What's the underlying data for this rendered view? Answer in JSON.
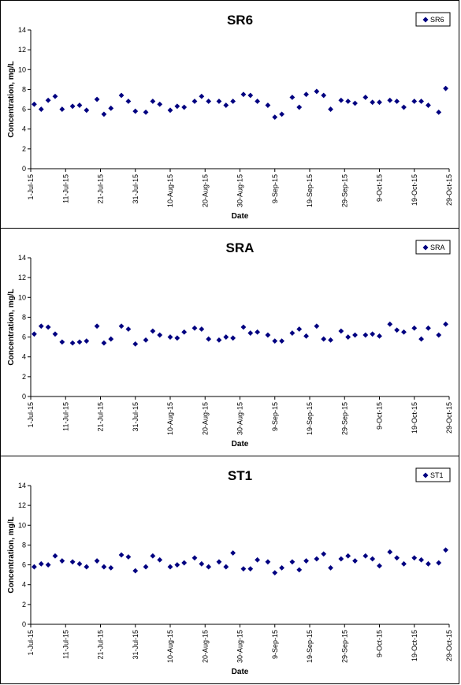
{
  "chart_data": [
    {
      "type": "scatter",
      "title": "SR6",
      "xlabel": "Date",
      "ylabel": "Concentration, mg/L",
      "ylim": [
        0,
        14
      ],
      "yticks": [
        "0",
        "2",
        "4",
        "6",
        "8",
        "10",
        "12",
        "14"
      ],
      "xlim": [
        "2015-07-01",
        "2015-10-29"
      ],
      "xticks": [
        "1-Jul-15",
        "11-Jul-15",
        "21-Jul-15",
        "31-Jul-15",
        "10-Aug-15",
        "20-Aug-15",
        "30-Aug-15",
        "9-Sep-15",
        "19-Sep-15",
        "29-Sep-15",
        "9-Oct-15",
        "19-Oct-15",
        "29-Oct-15"
      ],
      "legend": "top-right",
      "color": "#000080",
      "series": [
        {
          "name": "SR6",
          "x": [
            "2015-07-02",
            "2015-07-04",
            "2015-07-06",
            "2015-07-08",
            "2015-07-10",
            "2015-07-13",
            "2015-07-15",
            "2015-07-17",
            "2015-07-20",
            "2015-07-22",
            "2015-07-24",
            "2015-07-27",
            "2015-07-29",
            "2015-07-31",
            "2015-08-03",
            "2015-08-05",
            "2015-08-07",
            "2015-08-10",
            "2015-08-12",
            "2015-08-14",
            "2015-08-17",
            "2015-08-19",
            "2015-08-21",
            "2015-08-24",
            "2015-08-26",
            "2015-08-28",
            "2015-08-31",
            "2015-09-02",
            "2015-09-04",
            "2015-09-07",
            "2015-09-09",
            "2015-09-11",
            "2015-09-14",
            "2015-09-16",
            "2015-09-18",
            "2015-09-21",
            "2015-09-23",
            "2015-09-25",
            "2015-09-28",
            "2015-09-30",
            "2015-10-02",
            "2015-10-05",
            "2015-10-07",
            "2015-10-09",
            "2015-10-12",
            "2015-10-14",
            "2015-10-16",
            "2015-10-19",
            "2015-10-21",
            "2015-10-23",
            "2015-10-26",
            "2015-10-28"
          ],
          "y": [
            6.5,
            6.0,
            6.9,
            7.3,
            6.0,
            6.3,
            6.4,
            5.9,
            7.0,
            5.5,
            6.1,
            7.4,
            6.8,
            5.8,
            5.7,
            6.8,
            6.5,
            5.9,
            6.3,
            6.2,
            6.8,
            7.3,
            6.8,
            6.8,
            6.4,
            6.8,
            7.5,
            7.4,
            6.8,
            6.4,
            5.2,
            5.5,
            7.2,
            6.2,
            7.5,
            7.8,
            7.4,
            6.0,
            6.9,
            6.8,
            6.6,
            7.2,
            6.7,
            6.7,
            6.9,
            6.8,
            6.2,
            6.8,
            6.8,
            6.4,
            5.7,
            8.1
          ]
        }
      ]
    },
    {
      "type": "scatter",
      "title": "SRA",
      "xlabel": "Date",
      "ylabel": "Concentration, mg/L",
      "ylim": [
        0,
        14
      ],
      "yticks": [
        "0",
        "2",
        "4",
        "6",
        "8",
        "10",
        "12",
        "14"
      ],
      "xlim": [
        "2015-07-01",
        "2015-10-29"
      ],
      "xticks": [
        "1-Jul-15",
        "11-Jul-15",
        "21-Jul-15",
        "31-Jul-15",
        "10-Aug-15",
        "20-Aug-15",
        "30-Aug-15",
        "9-Sep-15",
        "19-Sep-15",
        "29-Sep-15",
        "9-Oct-15",
        "19-Oct-15",
        "29-Oct-15"
      ],
      "legend": "top-right",
      "color": "#000080",
      "series": [
        {
          "name": "SRA",
          "x": [
            "2015-07-02",
            "2015-07-04",
            "2015-07-06",
            "2015-07-08",
            "2015-07-10",
            "2015-07-13",
            "2015-07-15",
            "2015-07-17",
            "2015-07-20",
            "2015-07-22",
            "2015-07-24",
            "2015-07-27",
            "2015-07-29",
            "2015-07-31",
            "2015-08-03",
            "2015-08-05",
            "2015-08-07",
            "2015-08-10",
            "2015-08-12",
            "2015-08-14",
            "2015-08-17",
            "2015-08-19",
            "2015-08-21",
            "2015-08-24",
            "2015-08-26",
            "2015-08-28",
            "2015-08-31",
            "2015-09-02",
            "2015-09-04",
            "2015-09-07",
            "2015-09-09",
            "2015-09-11",
            "2015-09-14",
            "2015-09-16",
            "2015-09-18",
            "2015-09-21",
            "2015-09-23",
            "2015-09-25",
            "2015-09-28",
            "2015-09-30",
            "2015-10-02",
            "2015-10-05",
            "2015-10-07",
            "2015-10-09",
            "2015-10-12",
            "2015-10-14",
            "2015-10-16",
            "2015-10-19",
            "2015-10-21",
            "2015-10-23",
            "2015-10-26",
            "2015-10-28"
          ],
          "y": [
            6.3,
            7.1,
            7.0,
            6.3,
            5.5,
            5.4,
            5.5,
            5.6,
            7.1,
            5.4,
            5.8,
            7.1,
            6.8,
            5.3,
            5.7,
            6.6,
            6.2,
            6.0,
            5.9,
            6.5,
            6.9,
            6.8,
            5.8,
            5.7,
            6.0,
            5.9,
            7.0,
            6.4,
            6.5,
            6.2,
            5.6,
            5.6,
            6.4,
            6.8,
            6.1,
            7.1,
            5.8,
            5.7,
            6.6,
            6.0,
            6.2,
            6.2,
            6.3,
            6.1,
            7.3,
            6.7,
            6.5,
            6.9,
            5.8,
            6.9,
            6.2,
            7.3
          ]
        }
      ]
    },
    {
      "type": "scatter",
      "title": "ST1",
      "xlabel": "Date",
      "ylabel": "Concentration, mg/L",
      "ylim": [
        0,
        14
      ],
      "yticks": [
        "0",
        "2",
        "4",
        "6",
        "8",
        "10",
        "12",
        "14"
      ],
      "xlim": [
        "2015-07-01",
        "2015-10-29"
      ],
      "xticks": [
        "1-Jul-15",
        "11-Jul-15",
        "21-Jul-15",
        "31-Jul-15",
        "10-Aug-15",
        "20-Aug-15",
        "30-Aug-15",
        "9-Sep-15",
        "19-Sep-15",
        "29-Sep-15",
        "9-Oct-15",
        "19-Oct-15",
        "29-Oct-15"
      ],
      "legend": "top-right",
      "color": "#000080",
      "series": [
        {
          "name": "ST1",
          "x": [
            "2015-07-02",
            "2015-07-04",
            "2015-07-06",
            "2015-07-08",
            "2015-07-10",
            "2015-07-13",
            "2015-07-15",
            "2015-07-17",
            "2015-07-20",
            "2015-07-22",
            "2015-07-24",
            "2015-07-27",
            "2015-07-29",
            "2015-07-31",
            "2015-08-03",
            "2015-08-05",
            "2015-08-07",
            "2015-08-10",
            "2015-08-12",
            "2015-08-14",
            "2015-08-17",
            "2015-08-19",
            "2015-08-21",
            "2015-08-24",
            "2015-08-26",
            "2015-08-28",
            "2015-08-31",
            "2015-09-02",
            "2015-09-04",
            "2015-09-07",
            "2015-09-09",
            "2015-09-11",
            "2015-09-14",
            "2015-09-16",
            "2015-09-18",
            "2015-09-21",
            "2015-09-23",
            "2015-09-25",
            "2015-09-28",
            "2015-09-30",
            "2015-10-02",
            "2015-10-05",
            "2015-10-07",
            "2015-10-09",
            "2015-10-12",
            "2015-10-14",
            "2015-10-16",
            "2015-10-19",
            "2015-10-21",
            "2015-10-23",
            "2015-10-26",
            "2015-10-28"
          ],
          "y": [
            5.8,
            6.1,
            6.0,
            6.9,
            6.4,
            6.3,
            6.1,
            5.8,
            6.4,
            5.8,
            5.7,
            7.0,
            6.8,
            5.4,
            5.8,
            6.9,
            6.5,
            5.8,
            6.0,
            6.2,
            6.7,
            6.1,
            5.8,
            6.3,
            5.8,
            7.2,
            5.6,
            5.6,
            6.5,
            6.3,
            5.2,
            5.7,
            6.3,
            5.5,
            6.4,
            6.6,
            7.1,
            5.7,
            6.6,
            6.9,
            6.4,
            6.9,
            6.6,
            5.9,
            7.3,
            6.7,
            6.1,
            6.7,
            6.5,
            6.1,
            6.2,
            7.5
          ]
        }
      ]
    }
  ]
}
